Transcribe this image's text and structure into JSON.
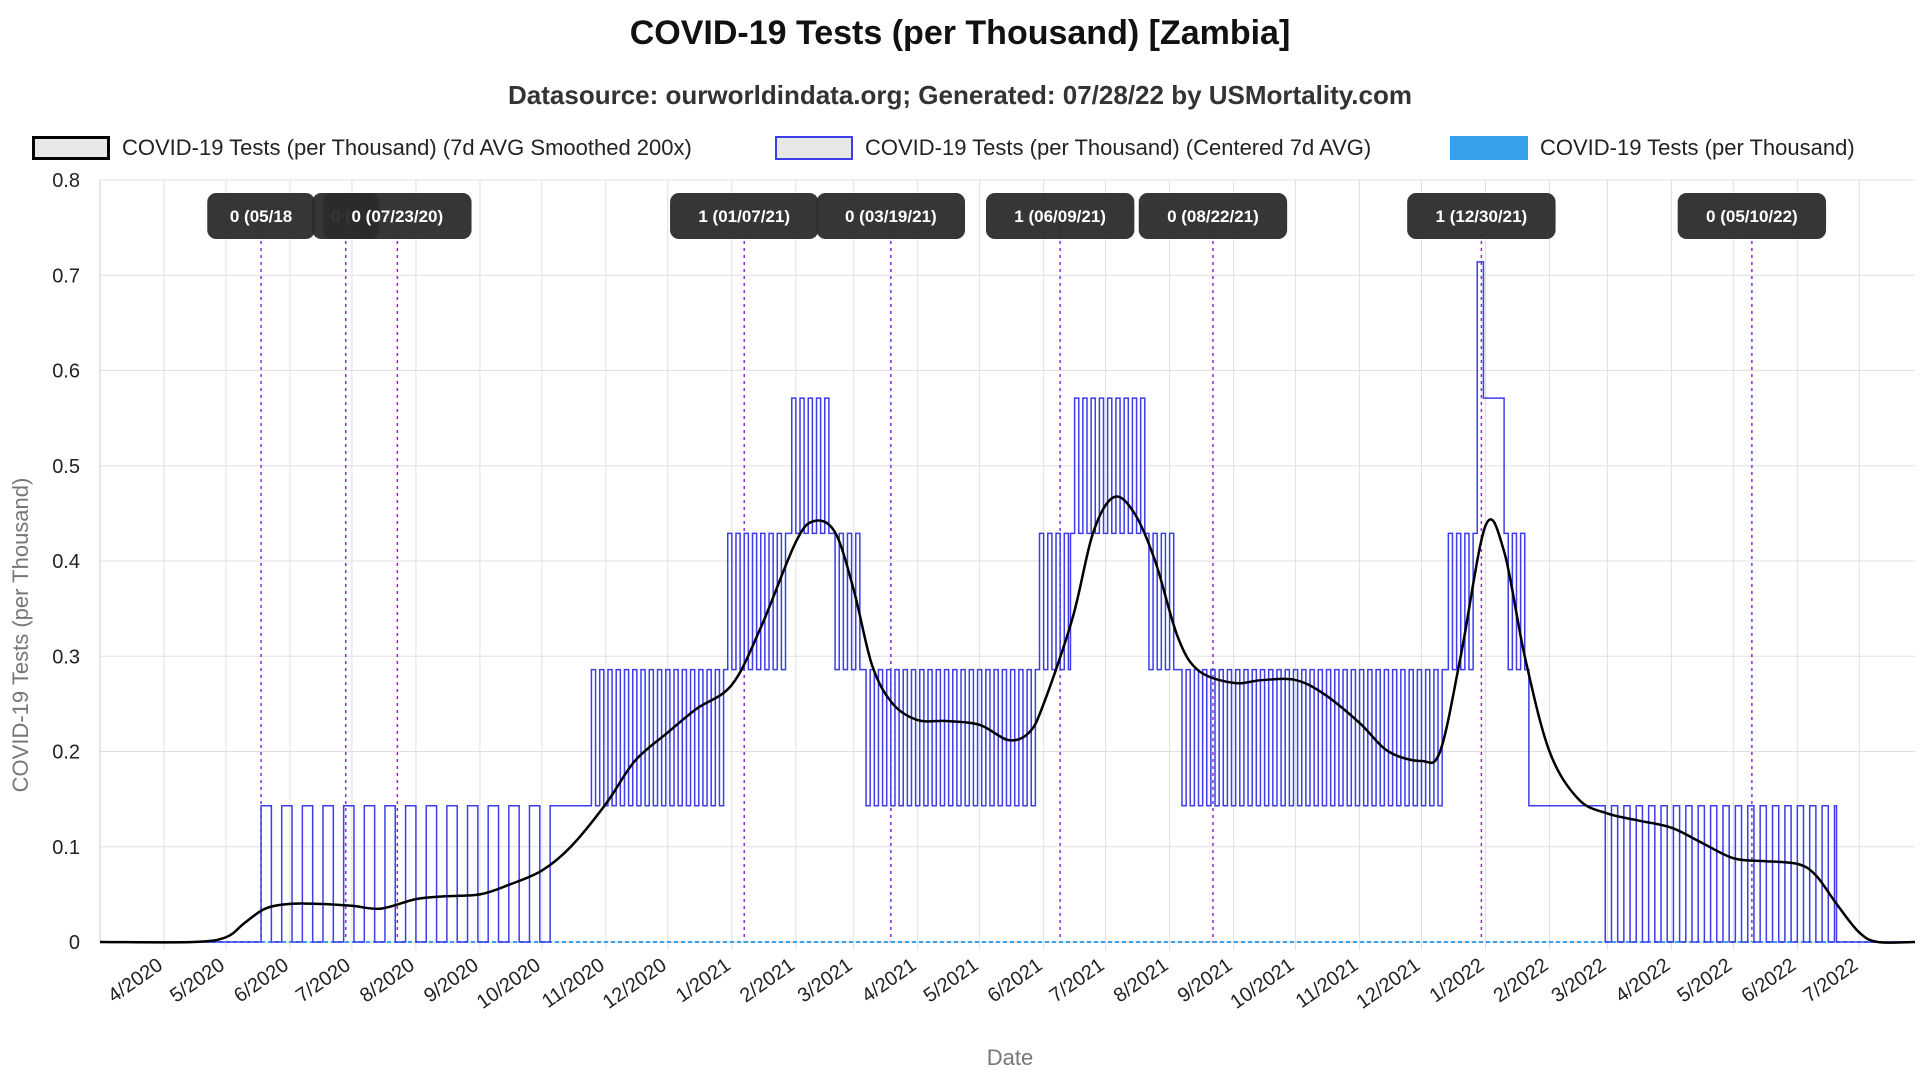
{
  "title": "COVID-19 Tests (per Thousand) [Zambia]",
  "subtitle": "Datasource: ourworldindata.org; Generated: 07/28/22 by USMortality.com",
  "colors": {
    "smoothed": "#000000",
    "centered": "#3d3dea",
    "raw": "#36a2eb",
    "marker": "#8a2be2",
    "annotation_bg": "#2b2b2b",
    "grid": "#e0e0e0"
  },
  "chart_data": {
    "type": "line",
    "xlabel": "Date",
    "ylabel": "COVID-19 Tests (per Thousand)",
    "ylim": [
      0,
      0.8
    ],
    "yticks": [
      "0",
      "0.1",
      "0.2",
      "0.3",
      "0.4",
      "0.5",
      "0.6",
      "0.7",
      "0.8"
    ],
    "x_range": [
      "2020-03-01",
      "2022-07-28"
    ],
    "xticks": [
      {
        "label": "4/2020",
        "date": "2020-04-01"
      },
      {
        "label": "5/2020",
        "date": "2020-05-01"
      },
      {
        "label": "6/2020",
        "date": "2020-06-01"
      },
      {
        "label": "7/2020",
        "date": "2020-07-01"
      },
      {
        "label": "8/2020",
        "date": "2020-08-01"
      },
      {
        "label": "9/2020",
        "date": "2020-09-01"
      },
      {
        "label": "10/2020",
        "date": "2020-10-01"
      },
      {
        "label": "11/2020",
        "date": "2020-11-01"
      },
      {
        "label": "12/2020",
        "date": "2020-12-01"
      },
      {
        "label": "1/2021",
        "date": "2021-01-01"
      },
      {
        "label": "2/2021",
        "date": "2021-02-01"
      },
      {
        "label": "3/2021",
        "date": "2021-03-01"
      },
      {
        "label": "4/2021",
        "date": "2021-04-01"
      },
      {
        "label": "5/2021",
        "date": "2021-05-01"
      },
      {
        "label": "6/2021",
        "date": "2021-06-01"
      },
      {
        "label": "7/2021",
        "date": "2021-07-01"
      },
      {
        "label": "8/2021",
        "date": "2021-08-01"
      },
      {
        "label": "9/2021",
        "date": "2021-09-01"
      },
      {
        "label": "10/2021",
        "date": "2021-10-01"
      },
      {
        "label": "11/2021",
        "date": "2021-11-01"
      },
      {
        "label": "12/2021",
        "date": "2021-12-01"
      },
      {
        "label": "1/2022",
        "date": "2022-01-01"
      },
      {
        "label": "2/2022",
        "date": "2022-02-01"
      },
      {
        "label": "3/2022",
        "date": "2022-03-01"
      },
      {
        "label": "4/2022",
        "date": "2022-04-01"
      },
      {
        "label": "5/2022",
        "date": "2022-05-01"
      },
      {
        "label": "6/2022",
        "date": "2022-06-01"
      },
      {
        "label": "7/2022",
        "date": "2022-07-01"
      }
    ],
    "legend_position": "top",
    "grid": true,
    "series": [
      {
        "name": "COVID-19 Tests (per Thousand) (7d AVG Smoothed 200x)",
        "style": "smooth",
        "points": [
          {
            "x": "2020-03-01",
            "y": 0
          },
          {
            "x": "2020-04-15",
            "y": 0
          },
          {
            "x": "2020-05-01",
            "y": 0.005
          },
          {
            "x": "2020-05-10",
            "y": 0.02
          },
          {
            "x": "2020-05-20",
            "y": 0.035
          },
          {
            "x": "2020-06-01",
            "y": 0.04
          },
          {
            "x": "2020-06-15",
            "y": 0.04
          },
          {
            "x": "2020-07-01",
            "y": 0.038
          },
          {
            "x": "2020-07-15",
            "y": 0.035
          },
          {
            "x": "2020-08-01",
            "y": 0.045
          },
          {
            "x": "2020-08-15",
            "y": 0.048
          },
          {
            "x": "2020-09-01",
            "y": 0.05
          },
          {
            "x": "2020-09-15",
            "y": 0.06
          },
          {
            "x": "2020-10-01",
            "y": 0.075
          },
          {
            "x": "2020-10-15",
            "y": 0.1
          },
          {
            "x": "2020-11-01",
            "y": 0.145
          },
          {
            "x": "2020-11-15",
            "y": 0.19
          },
          {
            "x": "2020-12-01",
            "y": 0.22
          },
          {
            "x": "2020-12-15",
            "y": 0.245
          },
          {
            "x": "2021-01-01",
            "y": 0.27
          },
          {
            "x": "2021-01-15",
            "y": 0.33
          },
          {
            "x": "2021-02-01",
            "y": 0.42
          },
          {
            "x": "2021-02-10",
            "y": 0.442
          },
          {
            "x": "2021-02-20",
            "y": 0.43
          },
          {
            "x": "2021-03-01",
            "y": 0.37
          },
          {
            "x": "2021-03-10",
            "y": 0.29
          },
          {
            "x": "2021-03-20",
            "y": 0.25
          },
          {
            "x": "2021-04-01",
            "y": 0.233
          },
          {
            "x": "2021-04-15",
            "y": 0.232
          },
          {
            "x": "2021-05-01",
            "y": 0.228
          },
          {
            "x": "2021-05-15",
            "y": 0.212
          },
          {
            "x": "2021-05-25",
            "y": 0.22
          },
          {
            "x": "2021-06-01",
            "y": 0.25
          },
          {
            "x": "2021-06-15",
            "y": 0.34
          },
          {
            "x": "2021-06-25",
            "y": 0.43
          },
          {
            "x": "2021-07-05",
            "y": 0.467
          },
          {
            "x": "2021-07-15",
            "y": 0.45
          },
          {
            "x": "2021-07-25",
            "y": 0.4
          },
          {
            "x": "2021-08-05",
            "y": 0.32
          },
          {
            "x": "2021-08-15",
            "y": 0.285
          },
          {
            "x": "2021-09-01",
            "y": 0.272
          },
          {
            "x": "2021-09-15",
            "y": 0.275
          },
          {
            "x": "2021-10-01",
            "y": 0.275
          },
          {
            "x": "2021-10-15",
            "y": 0.26
          },
          {
            "x": "2021-11-01",
            "y": 0.23
          },
          {
            "x": "2021-11-15",
            "y": 0.2
          },
          {
            "x": "2021-12-01",
            "y": 0.19
          },
          {
            "x": "2021-12-10",
            "y": 0.2
          },
          {
            "x": "2021-12-20",
            "y": 0.3
          },
          {
            "x": "2022-01-01",
            "y": 0.437
          },
          {
            "x": "2022-01-10",
            "y": 0.41
          },
          {
            "x": "2022-01-20",
            "y": 0.3
          },
          {
            "x": "2022-02-01",
            "y": 0.2
          },
          {
            "x": "2022-02-15",
            "y": 0.15
          },
          {
            "x": "2022-03-01",
            "y": 0.135
          },
          {
            "x": "2022-03-15",
            "y": 0.128
          },
          {
            "x": "2022-04-01",
            "y": 0.12
          },
          {
            "x": "2022-04-15",
            "y": 0.105
          },
          {
            "x": "2022-05-01",
            "y": 0.088
          },
          {
            "x": "2022-05-15",
            "y": 0.085
          },
          {
            "x": "2022-06-01",
            "y": 0.082
          },
          {
            "x": "2022-06-10",
            "y": 0.07
          },
          {
            "x": "2022-06-20",
            "y": 0.04
          },
          {
            "x": "2022-07-01",
            "y": 0.01
          },
          {
            "x": "2022-07-10",
            "y": 0
          },
          {
            "x": "2022-07-28",
            "y": 0
          }
        ]
      },
      {
        "name": "COVID-19 Tests (per Thousand) (Centered 7d AVG)",
        "style": "step",
        "segments": [
          {
            "start": "2020-03-01",
            "end": "2020-05-18",
            "levels": [
              0
            ],
            "width_days": 1
          },
          {
            "start": "2020-05-18",
            "end": "2020-10-10",
            "levels": [
              0.143,
              0
            ],
            "width_days": 5
          },
          {
            "start": "2020-10-10",
            "end": "2020-10-25",
            "levels": [
              0.143
            ],
            "width_days": 1
          },
          {
            "start": "2020-10-25",
            "end": "2020-12-28",
            "levels": [
              0.286,
              0.143
            ],
            "width_days": 2
          },
          {
            "start": "2020-12-28",
            "end": "2021-01-28",
            "levels": [
              0.286,
              0.429
            ],
            "width_days": 2
          },
          {
            "start": "2021-01-28",
            "end": "2021-02-18",
            "levels": [
              0.429,
              0.571
            ],
            "width_days": 2
          },
          {
            "start": "2021-02-18",
            "end": "2021-03-05",
            "levels": [
              0.429,
              0.286
            ],
            "width_days": 2
          },
          {
            "start": "2021-03-05",
            "end": "2021-05-28",
            "levels": [
              0.286,
              0.143
            ],
            "width_days": 2
          },
          {
            "start": "2021-05-28",
            "end": "2021-06-14",
            "levels": [
              0.286,
              0.429
            ],
            "width_days": 2
          },
          {
            "start": "2021-06-14",
            "end": "2021-07-20",
            "levels": [
              0.429,
              0.571
            ],
            "width_days": 2
          },
          {
            "start": "2021-07-20",
            "end": "2021-08-05",
            "levels": [
              0.429,
              0.286
            ],
            "width_days": 2
          },
          {
            "start": "2021-08-05",
            "end": "2021-12-12",
            "levels": [
              0.286,
              0.143
            ],
            "width_days": 2
          },
          {
            "start": "2021-12-12",
            "end": "2021-12-28",
            "levels": [
              0.286,
              0.429
            ],
            "width_days": 2
          },
          {
            "start": "2021-12-28",
            "end": "2021-12-31",
            "levels": [
              0.714
            ],
            "width_days": 1
          },
          {
            "start": "2021-12-31",
            "end": "2022-01-10",
            "levels": [
              0.571
            ],
            "width_days": 1
          },
          {
            "start": "2022-01-10",
            "end": "2022-01-22",
            "levels": [
              0.429,
              0.286
            ],
            "width_days": 2
          },
          {
            "start": "2022-01-22",
            "end": "2022-02-25",
            "levels": [
              0.143
            ],
            "width_days": 1
          },
          {
            "start": "2022-02-25",
            "end": "2022-06-20",
            "levels": [
              0.143,
              0
            ],
            "width_days": 3
          },
          {
            "start": "2022-06-20",
            "end": "2022-07-28",
            "levels": [
              0
            ],
            "width_days": 1
          }
        ]
      },
      {
        "name": "COVID-19 Tests (per Thousand)",
        "style": "line",
        "points": [
          {
            "x": "2020-03-01",
            "y": 0
          },
          {
            "x": "2022-07-28",
            "y": 0
          }
        ]
      }
    ],
    "annotations": [
      {
        "label": "0 (05/18",
        "date": "2020-05-18"
      },
      {
        "label": "0 (0",
        "date": "2020-06-28"
      },
      {
        "label": "0 (07/23/20)",
        "date": "2020-07-23"
      },
      {
        "label": "1 (01/07/21)",
        "date": "2021-01-07"
      },
      {
        "label": "0 (03/19/21)",
        "date": "2021-03-19"
      },
      {
        "label": "1 (06/09/21)",
        "date": "2021-06-09"
      },
      {
        "label": "0 (08/22/21)",
        "date": "2021-08-22"
      },
      {
        "label": "1 (12/30/21)",
        "date": "2021-12-30"
      },
      {
        "label": "0 (05/10/22)",
        "date": "2022-05-10"
      }
    ]
  }
}
